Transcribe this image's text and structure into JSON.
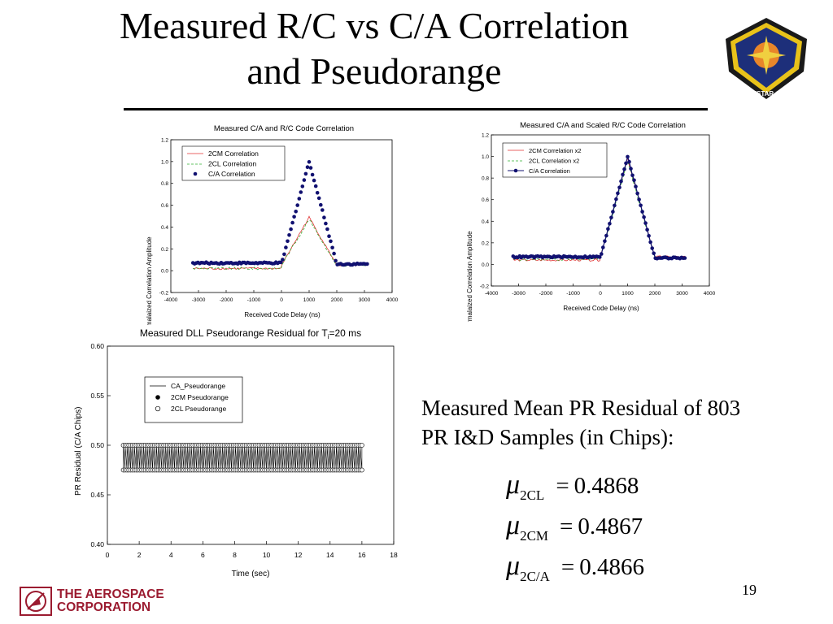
{
  "slide": {
    "title_line1": "Measured R/C vs C/A Correlation",
    "title_line2": "and Pseudorange",
    "page_number": "19",
    "stats_text_line1": "Measured Mean PR Residual of 803",
    "stats_text_line2": "PR I&D Samples (in Chips):",
    "stats": [
      {
        "symbol": "μ",
        "subscript": "2CL",
        "equals": "=",
        "value": "0.4868"
      },
      {
        "symbol": "μ",
        "subscript": "2CM",
        "equals": "=",
        "value": "0.4867"
      },
      {
        "symbol": "μ",
        "subscript": "2C/A",
        "equals": "=",
        "value": "0.4866"
      }
    ],
    "logo_org_line1": "THE AEROSPACE",
    "logo_org_line2": "CORPORATION",
    "seal_text": "NAVSTAR GPS",
    "colors": {
      "corp_red": "#9b1b30",
      "cm_line": "#e03030",
      "cl_line": "#30b030",
      "ca_marker": "#101070"
    }
  },
  "chart_data": [
    {
      "type": "line",
      "title": "Measured C/A and R/C Code Correlation",
      "xlabel": "Received Code Delay (ns)",
      "ylabel": "Normalaized Correlation Amplitude",
      "xlim": [
        -4000,
        4000
      ],
      "ylim": [
        -0.2,
        1.2
      ],
      "xticks": [
        -4000,
        -3000,
        -2000,
        -1000,
        0,
        1000,
        2000,
        3000,
        4000
      ],
      "yticks": [
        -0.2,
        0.0,
        0.2,
        0.4,
        0.6,
        0.8,
        1.0,
        1.2
      ],
      "xtick_labels": [
        "-4000",
        "-3000",
        "-2000",
        "-1000",
        "0",
        "1000",
        "2000",
        "3000",
        "4000"
      ],
      "ytick_labels": [
        "-0.2",
        "0.0",
        "0.2",
        "0.4",
        "0.6",
        "0.8",
        "1.0",
        "1.2"
      ],
      "legend": [
        "2CM Correlation",
        "2CL Correlation",
        "C/A Correlation"
      ],
      "series": [
        {
          "name": "2CM Correlation",
          "style": "line",
          "x": [
            -3000,
            -2000,
            -1000,
            0,
            1000,
            2000,
            3000
          ],
          "values": [
            0.02,
            0.02,
            0.03,
            0.03,
            0.49,
            0.04,
            0.05
          ]
        },
        {
          "name": "2CL Correlation",
          "style": "dashed",
          "x": [
            -3000,
            -2000,
            -1000,
            0,
            1000,
            2000,
            3000
          ],
          "values": [
            0.02,
            0.02,
            0.03,
            0.03,
            0.47,
            0.04,
            0.05
          ]
        },
        {
          "name": "C/A Correlation",
          "style": "markers",
          "x": [
            -3000,
            -2000,
            -1000,
            0,
            1000,
            2000,
            3000
          ],
          "values": [
            0.07,
            0.04,
            0.04,
            0.05,
            1.0,
            0.05,
            0.06
          ]
        }
      ]
    },
    {
      "type": "line",
      "title": "Measured C/A and Scaled R/C Code Correlation",
      "xlabel": "Received Code Delay (ns)",
      "ylabel": "Normalaized Correlation Amplitude",
      "xlim": [
        -4000,
        4000
      ],
      "ylim": [
        -0.2,
        1.2
      ],
      "xticks": [
        -4000,
        -3000,
        -2000,
        -1000,
        0,
        1000,
        2000,
        3000,
        4000
      ],
      "yticks": [
        -0.2,
        0.0,
        0.2,
        0.4,
        0.6,
        0.8,
        1.0,
        1.2
      ],
      "xtick_labels": [
        "-4000",
        "-3000",
        "-2000",
        "-1000",
        "0",
        "1000",
        "2000",
        "3000",
        "4000"
      ],
      "ytick_labels": [
        "-0.2",
        "0.0",
        "0.2",
        "0.4",
        "0.6",
        "0.8",
        "1.0",
        "1.2"
      ],
      "legend": [
        "2CM Correlation x2",
        "2CL Correlation x2",
        "C/A Correlation"
      ],
      "series": [
        {
          "name": "2CM Correlation x2",
          "style": "line",
          "x": [
            -3000,
            -2000,
            -1000,
            0,
            1000,
            2000,
            3000
          ],
          "values": [
            0.04,
            0.04,
            0.05,
            0.05,
            0.98,
            0.07,
            0.07
          ]
        },
        {
          "name": "2CL Correlation x2",
          "style": "dashed",
          "x": [
            -3000,
            -2000,
            -1000,
            0,
            1000,
            2000,
            3000
          ],
          "values": [
            0.05,
            0.04,
            0.05,
            0.06,
            0.96,
            0.08,
            0.06
          ]
        },
        {
          "name": "C/A Correlation",
          "style": "line-markers",
          "x": [
            -3000,
            -2000,
            -1000,
            0,
            1000,
            2000,
            3000
          ],
          "values": [
            0.07,
            0.04,
            0.04,
            0.05,
            1.0,
            0.06,
            0.06
          ]
        }
      ]
    },
    {
      "type": "line",
      "title": "Measured DLL Pseudorange Residual for T",
      "title_sub": "i",
      "title_tail": "=20 ms",
      "xlabel": "Time (sec)",
      "ylabel": "PR Residual (C/A Chips)",
      "xlim": [
        0,
        18
      ],
      "ylim": [
        0.4,
        0.6
      ],
      "xticks": [
        0,
        2,
        4,
        6,
        8,
        10,
        12,
        14,
        16,
        18
      ],
      "yticks": [
        0.4,
        0.45,
        0.5,
        0.55,
        0.6
      ],
      "xtick_labels": [
        "0",
        "2",
        "4",
        "6",
        "8",
        "10",
        "12",
        "14",
        "16",
        "18"
      ],
      "ytick_labels": [
        "0.40",
        "0.45",
        "0.50",
        "0.55",
        "0.60"
      ],
      "legend": [
        "CA_Pseudorange",
        "2CM Pseudorange",
        "2CL Pseudorange"
      ],
      "series": [
        {
          "name": "CA_Pseudorange",
          "style": "line",
          "x_start": 1.0,
          "x_end": 16.0,
          "levels": [
            0.475,
            0.5
          ]
        },
        {
          "name": "2CM Pseudorange",
          "style": "filled-circle",
          "x_start": 1.0,
          "x_end": 16.0,
          "levels": [
            0.475,
            0.5
          ]
        },
        {
          "name": "2CL Pseudorange",
          "style": "open-circle",
          "x_start": 1.0,
          "x_end": 16.0,
          "levels": [
            0.475,
            0.5
          ]
        }
      ]
    }
  ]
}
